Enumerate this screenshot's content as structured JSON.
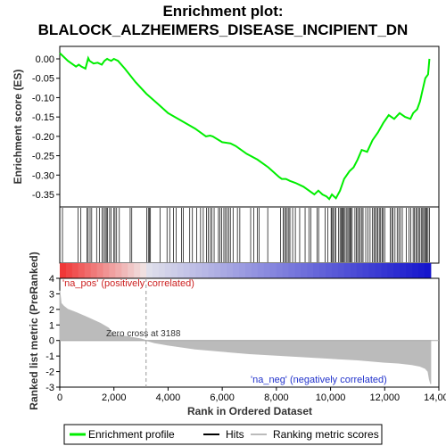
{
  "title_line1": "Enrichment plot:",
  "title_line2": "BLALOCK_ALZHEIMERS_DISEASE_INCIPIENT_DN",
  "colors": {
    "profile": "#00ee00",
    "hits": "#000000",
    "metric_fill": "#bbbbbb",
    "pos_text": "#cc2222",
    "neg_text": "#2233cc"
  },
  "chart_data": [
    {
      "type": "line",
      "ylabel": "Enrichment score (ES)",
      "xlim": [
        0,
        14000
      ],
      "ylim": [
        -0.38,
        0.02
      ],
      "yticks": [
        0.0,
        -0.05,
        -0.1,
        -0.15,
        -0.2,
        -0.25,
        -0.3,
        -0.35
      ],
      "ytick_labels": [
        "0.00",
        "-0.05",
        "-0.10",
        "-0.15",
        "-0.20",
        "-0.25",
        "-0.30",
        "-0.35"
      ],
      "grid": false,
      "series": [
        {
          "name": "Enrichment profile",
          "x": [
            0,
            300,
            600,
            700,
            800,
            950,
            1050,
            1100,
            1250,
            1400,
            1550,
            1650,
            1750,
            1800,
            1900,
            2000,
            2150,
            2400,
            2800,
            3200,
            3600,
            4000,
            4500,
            5000,
            5400,
            5550,
            5650,
            6000,
            6300,
            6500,
            6900,
            7300,
            7700,
            8100,
            8200,
            8350,
            8500,
            8700,
            9000,
            9400,
            9550,
            9700,
            9850,
            9950,
            10050,
            10200,
            10350,
            10500,
            10700,
            10850,
            11000,
            11150,
            11350,
            11550,
            11750,
            11950,
            12150,
            12350,
            12550,
            12750,
            12950,
            13050,
            13200,
            13300,
            13400,
            13500,
            13600,
            13650
          ],
          "y": [
            0.015,
            -0.005,
            -0.02,
            -0.015,
            -0.02,
            -0.025,
            0.002,
            -0.005,
            -0.012,
            -0.01,
            -0.015,
            -0.005,
            0.0,
            -0.002,
            -0.005,
            0.0,
            -0.005,
            -0.025,
            -0.06,
            -0.09,
            -0.115,
            -0.14,
            -0.16,
            -0.18,
            -0.2,
            -0.198,
            -0.2,
            -0.215,
            -0.218,
            -0.225,
            -0.245,
            -0.26,
            -0.28,
            -0.305,
            -0.31,
            -0.31,
            -0.315,
            -0.32,
            -0.33,
            -0.35,
            -0.34,
            -0.35,
            -0.355,
            -0.362,
            -0.35,
            -0.36,
            -0.34,
            -0.31,
            -0.29,
            -0.28,
            -0.26,
            -0.235,
            -0.24,
            -0.21,
            -0.19,
            -0.165,
            -0.145,
            -0.155,
            -0.14,
            -0.15,
            -0.155,
            -0.14,
            -0.13,
            -0.11,
            -0.08,
            -0.05,
            -0.04,
            0.0
          ]
        }
      ]
    },
    {
      "type": "table",
      "name": "Hits",
      "hit_positions": [
        100,
        680,
        780,
        1000,
        1050,
        1120,
        1180,
        1360,
        1460,
        1560,
        1620,
        1680,
        1720,
        1760,
        1840,
        1900,
        2000,
        2040,
        2100,
        2200,
        2600,
        2660,
        3210,
        3270,
        3310,
        3350,
        3700,
        3960,
        4060,
        4200,
        4300,
        4500,
        4560,
        4800,
        4900,
        5060,
        5200,
        5300,
        5420,
        5480,
        5560,
        5620,
        5700,
        5860,
        5920,
        5980,
        6060,
        6120,
        6180,
        6240,
        6300,
        6400,
        6560,
        6650,
        7050,
        7160,
        7300,
        7360,
        7680,
        8150,
        8250,
        8300,
        8350,
        8400,
        8460,
        8500,
        8600,
        8700,
        8860,
        9060,
        9200,
        9270,
        9500,
        9560,
        9800,
        9900,
        10020,
        10050,
        10100,
        10150,
        10200,
        10300,
        10350,
        10400,
        10420,
        10460,
        10500,
        10540,
        10600,
        10640,
        10680,
        10720,
        10760,
        10800,
        10900,
        10950,
        11000,
        11050,
        11100,
        11160,
        11200,
        11300,
        11380,
        11460,
        11540,
        11600,
        11640,
        11700,
        11750,
        11800,
        11850,
        11900,
        11940,
        12000,
        12200,
        12260,
        12300,
        12380,
        12460,
        12520,
        12580,
        12650,
        12800,
        12900,
        12960,
        13050,
        13100,
        13150,
        13200,
        13250,
        13300,
        13350,
        13400,
        13440,
        13480,
        13520,
        13560,
        13600,
        13650
      ]
    },
    {
      "type": "area",
      "ylabel": "Ranked list metric (PreRanked)",
      "xlabel": "Rank in Ordered Dataset",
      "xlim": [
        0,
        14000
      ],
      "ylim": [
        -3,
        4
      ],
      "xticks": [
        0,
        2000,
        4000,
        6000,
        8000,
        10000,
        12000,
        14000
      ],
      "xtick_labels": [
        "0",
        "2,000",
        "4,000",
        "6,000",
        "8,000",
        "10,000",
        "12,000",
        "14,000"
      ],
      "yticks": [
        4,
        3,
        2,
        1,
        0,
        -1,
        -2,
        -3
      ],
      "ytick_labels": [
        "4",
        "3",
        "2",
        "1",
        "0",
        "-1",
        "-2",
        "-3"
      ],
      "series": [
        {
          "name": "Ranking metric scores",
          "x": [
            0,
            50,
            150,
            300,
            600,
            1000,
            1500,
            1800,
            2000,
            2500,
            3000,
            3188,
            3500,
            4000,
            5000,
            6000,
            7000,
            8000,
            9000,
            10000,
            11000,
            12000,
            12500,
            13000,
            13300,
            13500,
            13600,
            13650,
            13700
          ],
          "y": [
            3.2,
            2.4,
            2.2,
            2.0,
            1.8,
            1.5,
            1.1,
            0.8,
            0.35,
            0.25,
            0.1,
            0.0,
            -0.15,
            -0.3,
            -0.55,
            -0.7,
            -0.85,
            -0.95,
            -1.05,
            -1.15,
            -1.25,
            -1.4,
            -1.45,
            -1.55,
            -1.65,
            -1.8,
            -2.0,
            -2.5,
            -2.8
          ]
        }
      ],
      "zero_cross_rank": 3188,
      "annotations": [
        "'na_pos' (positively correlated)",
        "Zero cross at 3188",
        "'na_neg' (negatively correlated)"
      ]
    }
  ],
  "legend": {
    "placement": "bottom",
    "items": [
      "Enrichment profile",
      "Hits",
      "Ranking metric scores"
    ]
  }
}
